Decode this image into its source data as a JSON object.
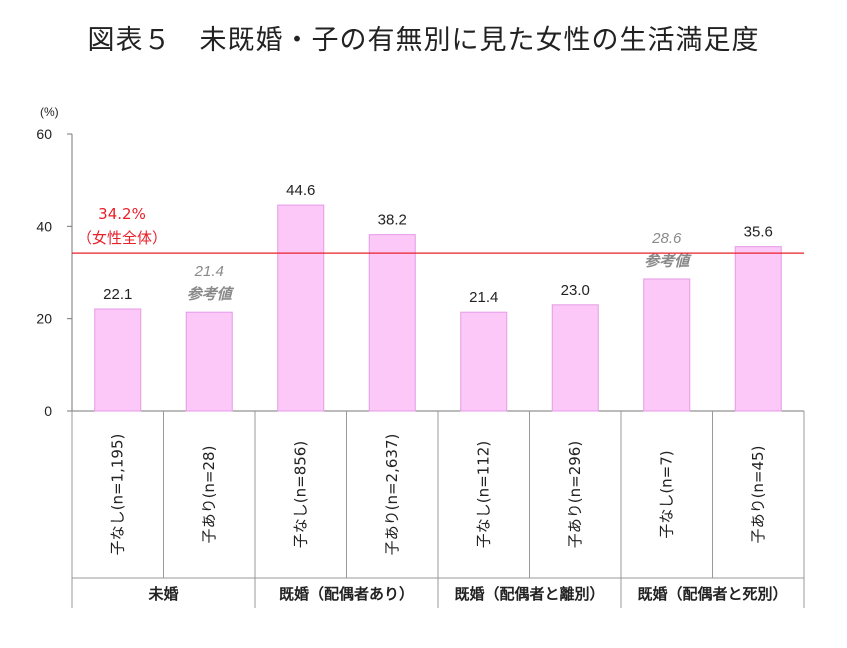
{
  "chart_data": {
    "type": "bar",
    "title": "図表５　未既婚・子の有無別に見た女性の生活満足度",
    "unit": "(%)",
    "ylim": [
      0,
      60
    ],
    "y_ticks": [
      "0",
      "20",
      "40",
      "60"
    ],
    "categories": [
      "子なし(n=1,195)",
      "子あり(n=28)",
      "子なし(n=856)",
      "子あり(n=2,637)",
      "子なし(n=112)",
      "子あり(n=296)",
      "子なし(n=7)",
      "子あり(n=45)"
    ],
    "values": [
      22.1,
      21.4,
      44.6,
      38.2,
      21.4,
      23.0,
      28.6,
      35.6
    ],
    "value_labels": [
      "22.1",
      "21.4",
      "44.6",
      "38.2",
      "21.4",
      "23.0",
      "28.6",
      "35.6"
    ],
    "reference_flags": [
      false,
      true,
      false,
      false,
      false,
      false,
      true,
      false
    ],
    "reference_note": "参考値",
    "groups": [
      {
        "label": "未婚",
        "span": 2
      },
      {
        "label": "既婚（配偶者あり）",
        "span": 2
      },
      {
        "label": "既婚（配偶者と離別）",
        "span": 2
      },
      {
        "label": "既婚（配偶者と死別）",
        "span": 2
      }
    ],
    "overall": {
      "value": 34.2,
      "label": "34.2%",
      "sublabel": "（女性全体）",
      "color": "#e8202a"
    },
    "bar_fill": "#fbc8f8",
    "bar_stroke": "#e69ae6",
    "grid": false,
    "legend": "none"
  }
}
